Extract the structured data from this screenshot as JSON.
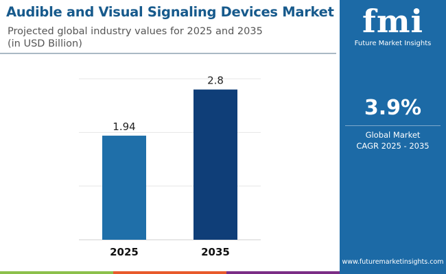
{
  "header": {
    "title": "Audible and Visual Signaling Devices Market",
    "subtitle_line1": "Projected global industry values for 2025 and 2035",
    "subtitle_line2": "(in USD Billion)"
  },
  "panel": {
    "logo_text": "fmi",
    "logo_name": "Future Market Insights",
    "cagr_value": "3.9%",
    "cagr_label_line1": "Global Market",
    "cagr_label_line2": "CAGR 2025 - 2035",
    "url": "www.futuremarketinsights.com",
    "color": "#1c6aa6"
  },
  "stripe_colors": [
    "#8cc04b",
    "#e85a2b",
    "#7b2d86"
  ],
  "chart_data": {
    "type": "bar",
    "categories": [
      "2025",
      "2035"
    ],
    "values": [
      1.94,
      2.8
    ],
    "value_labels": [
      "1.94",
      "2.8"
    ],
    "colors": [
      "#1f6fa9",
      "#0f3e78"
    ],
    "ylim": [
      0,
      3
    ],
    "grid": true,
    "xlabel": "",
    "ylabel": ""
  }
}
